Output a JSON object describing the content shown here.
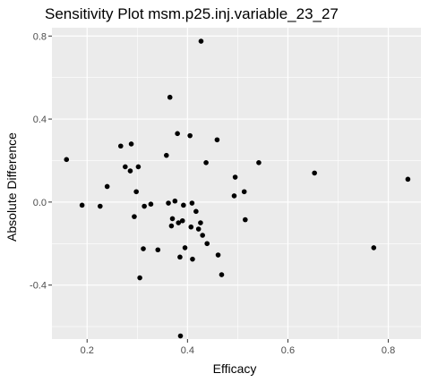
{
  "chart_data": {
    "type": "scatter",
    "title": "Sensitivity Plot msm.p25.inj.variable_23_27",
    "xlabel": "Efficacy",
    "ylabel": "Absolute Difference",
    "xlim": [
      0.13,
      0.865
    ],
    "ylim": [
      -0.66,
      0.84
    ],
    "x_ticks": [
      0.2,
      0.4,
      0.6,
      0.8
    ],
    "x_tick_labels": [
      "0.2",
      "0.4",
      "0.6",
      "0.8"
    ],
    "y_ticks": [
      -0.4,
      0.0,
      0.4,
      0.8
    ],
    "y_tick_labels": [
      "-0.4",
      "0.0",
      "0.4",
      "0.8"
    ],
    "grid": true,
    "panel_background": "#ebebeb",
    "grid_color": "#ffffff",
    "point_color": "#000000",
    "points": [
      {
        "x": 0.159,
        "y": 0.205
      },
      {
        "x": 0.19,
        "y": -0.015
      },
      {
        "x": 0.226,
        "y": -0.02
      },
      {
        "x": 0.24,
        "y": 0.075
      },
      {
        "x": 0.267,
        "y": 0.27
      },
      {
        "x": 0.276,
        "y": 0.17
      },
      {
        "x": 0.288,
        "y": 0.28
      },
      {
        "x": 0.286,
        "y": 0.15
      },
      {
        "x": 0.294,
        "y": -0.07
      },
      {
        "x": 0.298,
        "y": 0.05
      },
      {
        "x": 0.302,
        "y": 0.17
      },
      {
        "x": 0.305,
        "y": -0.365
      },
      {
        "x": 0.312,
        "y": -0.225
      },
      {
        "x": 0.314,
        "y": -0.02
      },
      {
        "x": 0.327,
        "y": -0.01
      },
      {
        "x": 0.341,
        "y": -0.23
      },
      {
        "x": 0.358,
        "y": 0.225
      },
      {
        "x": 0.362,
        "y": -0.005
      },
      {
        "x": 0.365,
        "y": 0.505
      },
      {
        "x": 0.368,
        "y": -0.115
      },
      {
        "x": 0.37,
        "y": -0.08
      },
      {
        "x": 0.375,
        "y": 0.005
      },
      {
        "x": 0.38,
        "y": 0.33
      },
      {
        "x": 0.382,
        "y": -0.1
      },
      {
        "x": 0.385,
        "y": -0.265
      },
      {
        "x": 0.386,
        "y": -0.645
      },
      {
        "x": 0.39,
        "y": -0.09
      },
      {
        "x": 0.392,
        "y": -0.015
      },
      {
        "x": 0.395,
        "y": -0.22
      },
      {
        "x": 0.405,
        "y": 0.32
      },
      {
        "x": 0.407,
        "y": -0.12
      },
      {
        "x": 0.409,
        "y": -0.005
      },
      {
        "x": 0.41,
        "y": -0.275
      },
      {
        "x": 0.417,
        "y": -0.045
      },
      {
        "x": 0.422,
        "y": -0.13
      },
      {
        "x": 0.426,
        "y": -0.1
      },
      {
        "x": 0.427,
        "y": 0.775
      },
      {
        "x": 0.43,
        "y": -0.16
      },
      {
        "x": 0.437,
        "y": 0.19
      },
      {
        "x": 0.439,
        "y": -0.2
      },
      {
        "x": 0.459,
        "y": 0.3
      },
      {
        "x": 0.461,
        "y": -0.255
      },
      {
        "x": 0.468,
        "y": -0.35
      },
      {
        "x": 0.493,
        "y": 0.03
      },
      {
        "x": 0.495,
        "y": 0.12
      },
      {
        "x": 0.513,
        "y": 0.05
      },
      {
        "x": 0.515,
        "y": -0.085
      },
      {
        "x": 0.542,
        "y": 0.19
      },
      {
        "x": 0.653,
        "y": 0.14
      },
      {
        "x": 0.771,
        "y": -0.22
      },
      {
        "x": 0.839,
        "y": 0.11
      }
    ]
  }
}
